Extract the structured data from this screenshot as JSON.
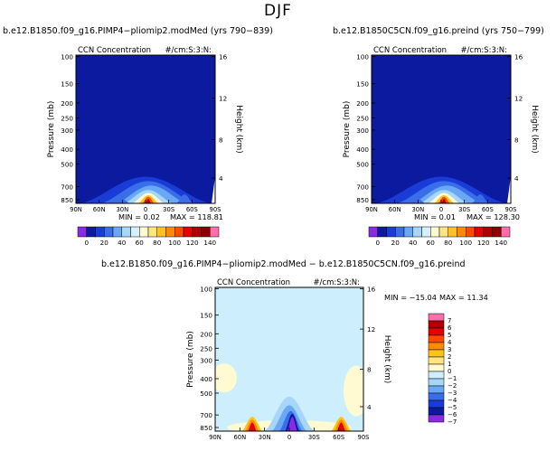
{
  "page_title": "DJF",
  "colors": {
    "background_field": "#0b1a9e",
    "diff_background": "#cdeffd",
    "frame": "#000000"
  },
  "chart_data": [
    {
      "type": "heatmap",
      "title": "b.e12.B1850.f09_g16.PIMP4−pliomip2.modMed (yrs 790−839)",
      "subtitle_left": "CCN Concentration",
      "subtitle_right": "#/cm:S:3:N:",
      "xlabel": "",
      "ylabel": "Pressure (mb)",
      "ylabel_right": "Height (km)",
      "x_ticks": [
        "90N",
        "60N",
        "30N",
        "0",
        "30S",
        "60S",
        "90S"
      ],
      "y_ticks": [
        "100",
        "150",
        "200",
        "250",
        "300",
        "400",
        "500",
        "700",
        "850"
      ],
      "y_ticks_right": [
        "16",
        "12",
        "8",
        "4"
      ],
      "stats": {
        "min": "MIN =    0.02",
        "max": "MAX = 118.81"
      },
      "colorbar_labels": [
        "0",
        "20",
        "40",
        "60",
        "80",
        "100",
        "120",
        "140"
      ]
    },
    {
      "type": "heatmap",
      "title": "b.e12.B1850C5CN.f09_g16.preind (yrs 750−799)",
      "subtitle_left": "CCN Concentration",
      "subtitle_right": "#/cm:S:3:N:",
      "xlabel": "",
      "ylabel": "Pressure (mb)",
      "ylabel_right": "Height (km)",
      "x_ticks": [
        "90N",
        "60N",
        "30N",
        "0",
        "30S",
        "60S",
        "90S"
      ],
      "y_ticks": [
        "100",
        "150",
        "200",
        "250",
        "300",
        "400",
        "500",
        "700",
        "850"
      ],
      "y_ticks_right": [
        "16",
        "12",
        "8",
        "4"
      ],
      "stats": {
        "min": "MIN =    0.01",
        "max": "MAX = 128.30"
      },
      "colorbar_labels": [
        "0",
        "20",
        "40",
        "60",
        "80",
        "100",
        "120",
        "140"
      ]
    },
    {
      "type": "heatmap",
      "title": "b.e12.B1850.f09_g16.PIMP4−pliomip2.modMed − b.e12.B1850C5CN.f09_g16.preind",
      "subtitle_left": "CCN Concentration",
      "subtitle_right": "#/cm:S:3:N:",
      "xlabel": "",
      "ylabel": "Pressure (mb)",
      "ylabel_right": "Height (km)",
      "x_ticks": [
        "90N",
        "60N",
        "30N",
        "0",
        "30S",
        "60S",
        "90S"
      ],
      "y_ticks": [
        "100",
        "150",
        "200",
        "250",
        "300",
        "400",
        "500",
        "700",
        "850"
      ],
      "y_ticks_right": [
        "16",
        "12",
        "8",
        "4"
      ],
      "stats": {
        "min": "MIN = −15.04",
        "max": "MAX =   11.34"
      },
      "colorbar_labels": [
        "7",
        "6",
        "5",
        "4",
        "3",
        "2",
        "1",
        "0",
        "−1",
        "−2",
        "−3",
        "−4",
        "−5",
        "−6",
        "−7"
      ]
    }
  ]
}
